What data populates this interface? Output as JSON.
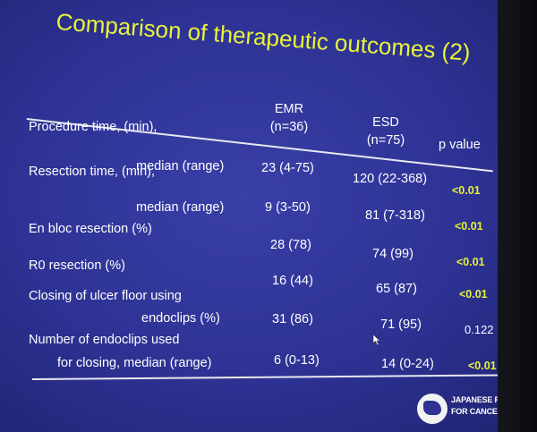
{
  "slide": {
    "title": "Comparison of therapeutic outcomes (2)",
    "headers": {
      "emr_line1": "EMR",
      "emr_line2": "(n=36)",
      "esd_line1": "ESD",
      "esd_line2": "(n=75)",
      "p_value": "p value"
    },
    "rows": [
      {
        "label1": "Procedure time, (min),",
        "label2": "median (range)",
        "emr": "23 (4-75)",
        "esd": "120 (22-368)",
        "p": "<0.01"
      },
      {
        "label1": "Resection time, (min),",
        "label2": "median (range)",
        "emr": "9 (3-50)",
        "esd": "81 (7-318)",
        "p": "<0.01"
      },
      {
        "label1": "En bloc resection (%)",
        "emr": "28 (78)",
        "esd": "74 (99)",
        "p": "<0.01"
      },
      {
        "label1": "R0 resection (%)",
        "emr": "16 (44)",
        "esd": "65 (87)",
        "p": "<0.01"
      },
      {
        "label1": "Closing of ulcer floor using",
        "label2": "endoclips (%)",
        "emr": "31 (86)",
        "esd": "71 (95)",
        "p": "0.122"
      },
      {
        "label1": "Number of endoclips used",
        "label2": "for closing, median (range)",
        "emr": "6 (0-13)",
        "esd": "14 (0-24)",
        "p": "<0.01"
      }
    ],
    "logo": {
      "line1": "JAPANESE FOUNDATION",
      "line2": "FOR CANCER RESEARCH"
    },
    "colors": {
      "background": "#2d3293",
      "title": "#e9f23a",
      "text": "#ffffff",
      "highlight": "#e6f03a"
    }
  }
}
